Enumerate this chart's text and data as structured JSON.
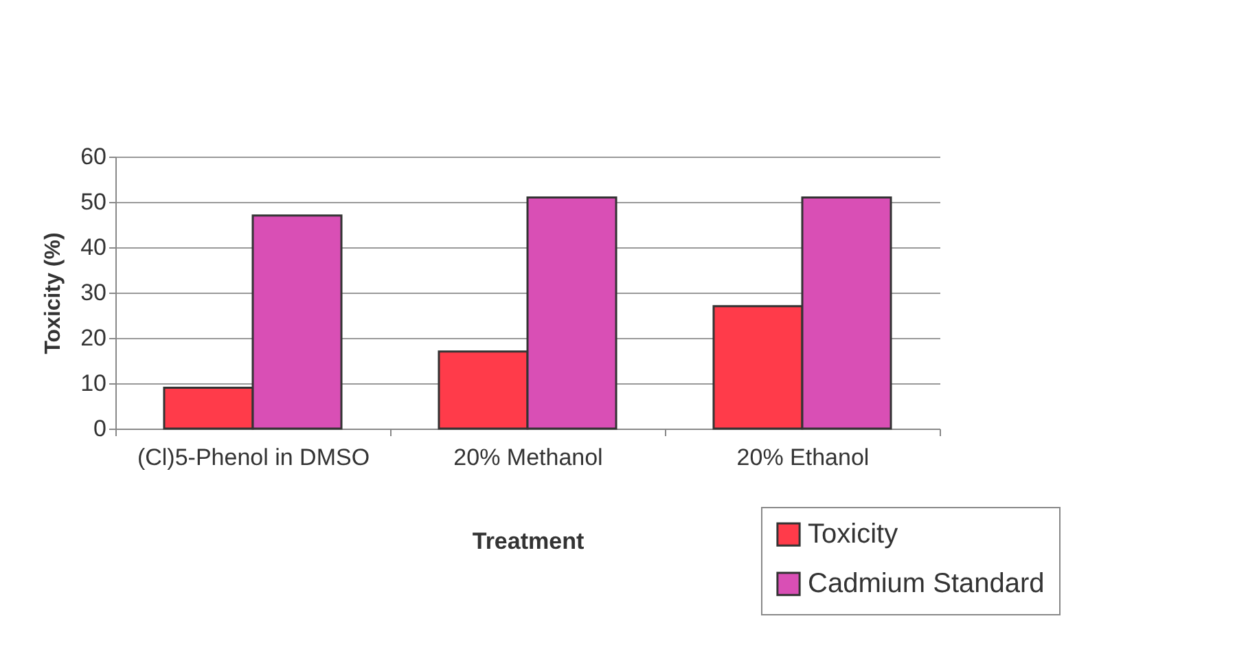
{
  "chart_data": {
    "type": "bar",
    "xlabel": "Treatment",
    "ylabel": "Toxicity (%)",
    "categories": [
      "(Cl)5-Phenol in DMSO",
      "20% Methanol",
      "20% Ethanol"
    ],
    "series": [
      {
        "name": "Toxicity",
        "color": "#ff3b4a",
        "values": [
          9,
          17,
          27
        ]
      },
      {
        "name": "Cadmium Standard",
        "color": "#d94fb5",
        "values": [
          47,
          51,
          51
        ]
      }
    ],
    "ylim": [
      0,
      60
    ],
    "yticks": [
      0,
      10,
      20,
      30,
      40,
      50,
      60
    ],
    "grid": "y",
    "legend": "bottom right"
  }
}
